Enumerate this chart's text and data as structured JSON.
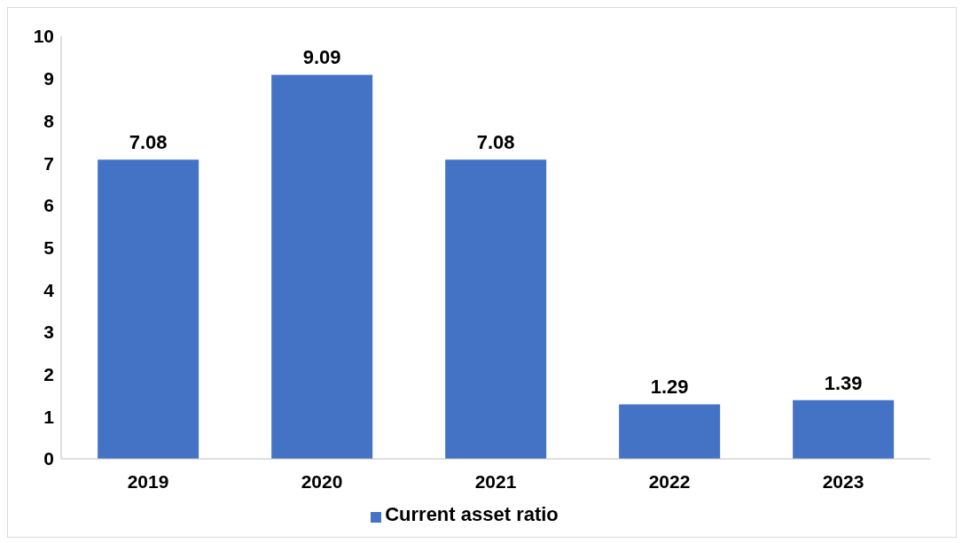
{
  "chart_data": {
    "type": "bar",
    "categories": [
      "2019",
      "2020",
      "2021",
      "2022",
      "2023"
    ],
    "series": [
      {
        "name": "Current asset ratio",
        "color": "#4472c4",
        "values": [
          7.08,
          9.09,
          7.08,
          1.29,
          1.39
        ]
      }
    ],
    "ylim": [
      0,
      10
    ],
    "yticks": [
      0,
      1,
      2,
      3,
      4,
      5,
      6,
      7,
      8,
      9,
      10
    ],
    "data_labels": true,
    "legend": "bottom",
    "grid": false
  }
}
